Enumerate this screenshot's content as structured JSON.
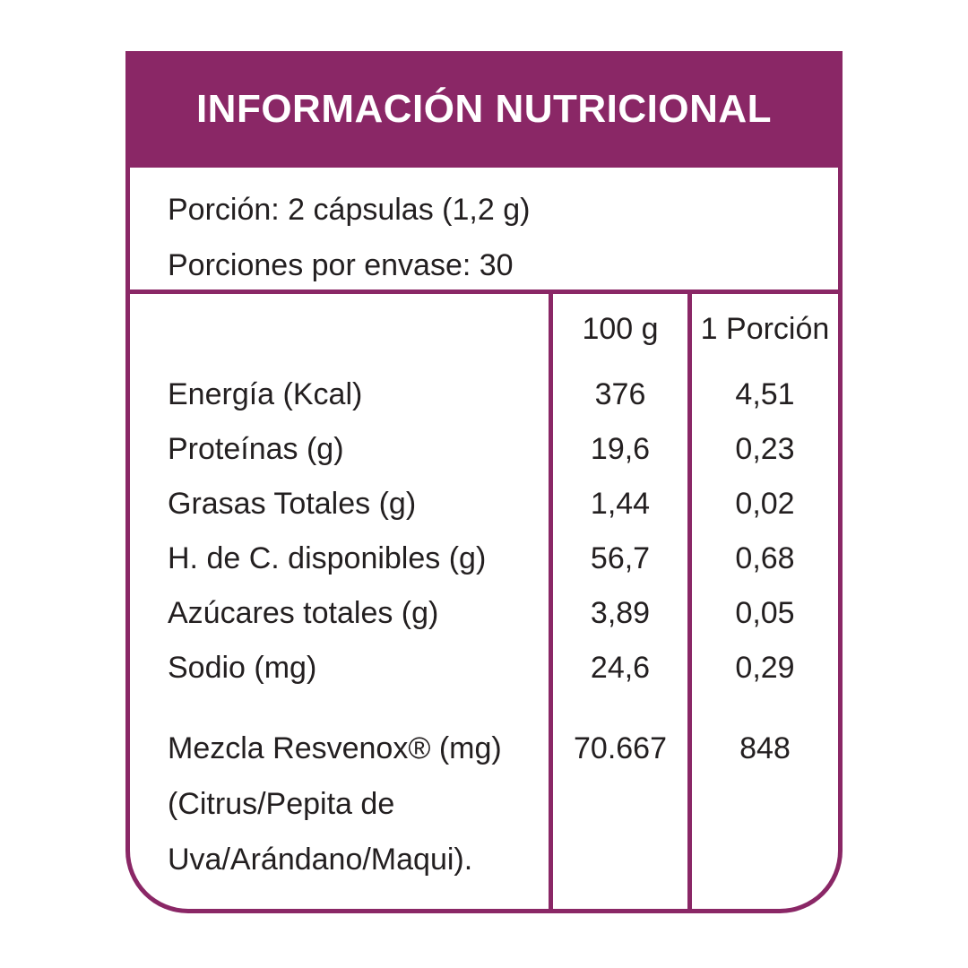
{
  "title": "INFORMACIÓN NUTRICIONAL",
  "serving": {
    "portion": "Porción: 2 cápsulas (1,2 g)",
    "portions_per_container": "Porciones por envase: 30"
  },
  "columns": {
    "per_100g": "100 g",
    "per_portion": "1 Porción"
  },
  "rows": [
    {
      "name": "Energía (Kcal)",
      "per_100g": "376",
      "per_portion": "4,51"
    },
    {
      "name": "Proteínas (g)",
      "per_100g": "19,6",
      "per_portion": "0,23"
    },
    {
      "name": "Grasas Totales (g)",
      "per_100g": "1,44",
      "per_portion": "0,02"
    },
    {
      "name": "H. de C. disponibles (g)",
      "per_100g": "56,7",
      "per_portion": "0,68"
    },
    {
      "name": "Azúcares totales (g)",
      "per_100g": "3,89",
      "per_portion": "0,05"
    },
    {
      "name": "Sodio (mg)",
      "per_100g": "24,6",
      "per_portion": "0,29"
    }
  ],
  "blend": {
    "line1": "Mezcla Resvenox® (mg)",
    "line2": "(Citrus/Pepita de",
    "line3": "Uva/Arándano/Maqui).",
    "per_100g": "70.667",
    "per_portion": "848"
  },
  "colors": {
    "accent": "#8a2766",
    "text": "#231f20"
  }
}
